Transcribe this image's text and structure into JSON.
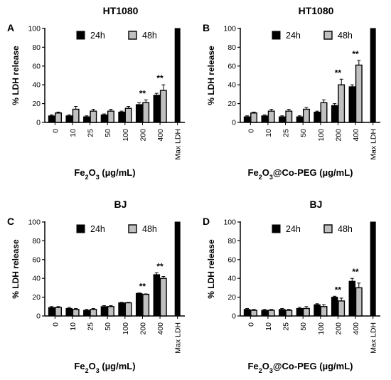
{
  "chart_data": [
    {
      "type": "bar",
      "panel": "A",
      "title": "HT1080",
      "xlabel": "Fe2O3 (µg/mL)",
      "xlabel_main": "Fe",
      "xlabel_sub1": "2",
      "xlabel_mid": "O",
      "xlabel_sub2": "3",
      "xlabel_tail": " (µg/mL)",
      "ylabel": "% LDH release",
      "ylim": [
        0,
        100
      ],
      "yticks": [
        "0",
        "20",
        "40",
        "60",
        "80",
        "100"
      ],
      "categories": [
        "0",
        "10",
        "25",
        "50",
        "100",
        "200",
        "400",
        "Max LDH"
      ],
      "series": [
        {
          "name": "24h",
          "values": [
            7,
            7,
            6,
            8,
            11,
            19,
            29,
            100
          ],
          "errors": [
            1,
            1,
            1,
            1,
            1,
            2,
            2,
            0
          ]
        },
        {
          "name": "48h",
          "values": [
            10,
            14,
            12,
            12,
            15,
            21,
            34,
            null
          ],
          "errors": [
            1,
            3,
            2,
            2,
            2,
            3,
            6,
            0
          ]
        }
      ],
      "significance": [
        "",
        "",
        "",
        "",
        "",
        "**",
        "**",
        ""
      ],
      "legend": "top",
      "colors": {
        "24h": "#000000",
        "48h": "#c0c0c0"
      }
    },
    {
      "type": "bar",
      "panel": "B",
      "title": "HT1080",
      "xlabel": "Fe2O3@Co-PEG (µg/mL)",
      "xlabel_main": "Fe",
      "xlabel_sub1": "2",
      "xlabel_mid": "O",
      "xlabel_sub2": "3",
      "xlabel_tail": "@Co-PEG (µg/mL)",
      "ylabel": "% LDH release",
      "ylim": [
        0,
        100
      ],
      "yticks": [
        "0",
        "20",
        "40",
        "60",
        "80",
        "100"
      ],
      "categories": [
        "0",
        "10",
        "25",
        "50",
        "100",
        "200",
        "400",
        "Max LDH"
      ],
      "series": [
        {
          "name": "24h",
          "values": [
            6,
            7,
            6,
            6,
            11,
            18,
            38,
            100
          ],
          "errors": [
            1,
            1,
            1,
            1,
            1,
            2,
            2,
            0
          ]
        },
        {
          "name": "48h",
          "values": [
            10,
            12,
            12,
            14,
            21,
            40,
            61,
            null
          ],
          "errors": [
            1,
            2,
            2,
            2,
            3,
            6,
            5,
            0
          ]
        }
      ],
      "significance": [
        "",
        "",
        "",
        "",
        "",
        "**",
        "**",
        ""
      ],
      "legend": "top",
      "colors": {
        "24h": "#000000",
        "48h": "#c0c0c0"
      }
    },
    {
      "type": "bar",
      "panel": "C",
      "title": "BJ",
      "xlabel": "Fe2O3 (µg/mL)",
      "xlabel_main": "Fe",
      "xlabel_sub1": "2",
      "xlabel_mid": "O",
      "xlabel_sub2": "3",
      "xlabel_tail": " (µg/mL)",
      "ylabel": "% LDH release",
      "ylim": [
        0,
        100
      ],
      "yticks": [
        "0",
        "20",
        "40",
        "60",
        "80",
        "100"
      ],
      "categories": [
        "0",
        "10",
        "25",
        "50",
        "100",
        "200",
        "400",
        "Max LDH"
      ],
      "series": [
        {
          "name": "24h",
          "values": [
            9,
            8,
            6,
            10,
            14,
            24,
            44,
            100
          ],
          "errors": [
            1,
            1,
            1,
            1,
            0.5,
            0.5,
            2,
            0
          ]
        },
        {
          "name": "48h",
          "values": [
            9,
            7,
            7,
            10,
            14,
            23,
            40,
            null
          ],
          "errors": [
            1,
            1,
            1,
            1,
            0.5,
            0.5,
            2,
            0
          ]
        }
      ],
      "significance": [
        "",
        "",
        "",
        "",
        "",
        "**",
        "**",
        ""
      ],
      "legend": "top",
      "colors": {
        "24h": "#000000",
        "48h": "#c0c0c0"
      }
    },
    {
      "type": "bar",
      "panel": "D",
      "title": "BJ",
      "xlabel": "Fe2O3@Co-PEG (µg/mL)",
      "xlabel_main": "Fe",
      "xlabel_sub1": "2",
      "xlabel_mid": "O",
      "xlabel_sub2": "3",
      "xlabel_tail": "@Co-PEG (µg/mL)",
      "ylabel": "% LDH release",
      "ylim": [
        0,
        100
      ],
      "yticks": [
        "0",
        "20",
        "40",
        "60",
        "80",
        "100"
      ],
      "categories": [
        "0",
        "10",
        "25",
        "50",
        "100",
        "200",
        "400",
        "Max LDH"
      ],
      "series": [
        {
          "name": "24h",
          "values": [
            7,
            6,
            7,
            8,
            12,
            20,
            37,
            100
          ],
          "errors": [
            1,
            1,
            1,
            1,
            1,
            1,
            3,
            0
          ]
        },
        {
          "name": "48h",
          "values": [
            6,
            6,
            6,
            8,
            10,
            16,
            30,
            null
          ],
          "errors": [
            1,
            1,
            1,
            2,
            2,
            3,
            5,
            0
          ]
        }
      ],
      "significance": [
        "",
        "",
        "",
        "",
        "",
        "**",
        "**",
        ""
      ],
      "legend": "top",
      "colors": {
        "24h": "#000000",
        "48h": "#c0c0c0"
      }
    }
  ]
}
